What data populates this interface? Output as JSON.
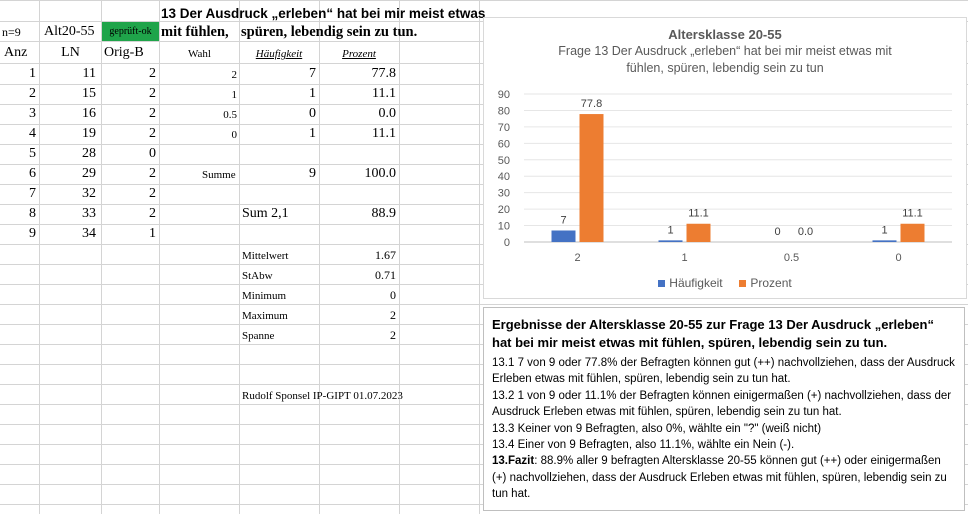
{
  "sheet": {
    "title": "13 Der Ausdruck „erleben“ hat bei mir meist etwas",
    "title_cont_1": "mit fühlen,",
    "title_cont_2": "spüren, lebendig sein zu tun.",
    "n_label": "n=9",
    "group_label": "Alt20-55",
    "checked_label": "geprüft-ok",
    "col_anz": "Anz",
    "col_ln": "LN",
    "col_orig": "Orig-B",
    "col_wahl": "Wahl",
    "col_haeuf": "Häufigkeit",
    "col_proz": "Prozent",
    "rows": [
      {
        "anz": "1",
        "ln": "11",
        "orig": "2"
      },
      {
        "anz": "2",
        "ln": "15",
        "orig": "2"
      },
      {
        "anz": "3",
        "ln": "16",
        "orig": "2"
      },
      {
        "anz": "4",
        "ln": "19",
        "orig": "2"
      },
      {
        "anz": "5",
        "ln": "28",
        "orig": "0"
      },
      {
        "anz": "6",
        "ln": "29",
        "orig": "2"
      },
      {
        "anz": "7",
        "ln": "32",
        "orig": "2"
      },
      {
        "anz": "8",
        "ln": "33",
        "orig": "2"
      },
      {
        "anz": "9",
        "ln": "34",
        "orig": "1"
      }
    ],
    "freq": [
      {
        "wahl": "2",
        "haeuf": "7",
        "proz": "77.8"
      },
      {
        "wahl": "1",
        "haeuf": "1",
        "proz": "11.1"
      },
      {
        "wahl": "0.5",
        "haeuf": "0",
        "proz": "0.0"
      },
      {
        "wahl": "0",
        "haeuf": "1",
        "proz": "11.1"
      }
    ],
    "summe_label": "Summe",
    "summe_haeuf": "9",
    "summe_proz": "100.0",
    "sum21_label": "Sum 2,1",
    "sum21_value": "88.9",
    "stats": [
      {
        "label": "Mittelwert",
        "value": "1.67"
      },
      {
        "label": "StAbw",
        "value": "0.71"
      },
      {
        "label": "Minimum",
        "value": "0"
      },
      {
        "label": "Maximum",
        "value": "2"
      },
      {
        "label": "Spanne",
        "value": "2"
      }
    ],
    "author": "Rudolf Sponsel IP-GIPT 01.07.2023"
  },
  "chart_data": {
    "type": "bar",
    "title": "Altersklasse 20-55",
    "subtitle_line1": "Frage 13 Der Ausdruck „erleben“ hat bei mir meist etwas mit",
    "subtitle_line2": "fühlen, spüren, lebendig sein zu tun",
    "categories": [
      "2",
      "1",
      "0.5",
      "0"
    ],
    "series": [
      {
        "name": "Häufigkeit",
        "values": [
          7,
          1,
          0,
          1
        ],
        "labels": [
          "7",
          "1",
          "0",
          "1"
        ],
        "color": "#4472c4"
      },
      {
        "name": "Prozent",
        "values": [
          77.8,
          11.1,
          0.0,
          11.1
        ],
        "labels": [
          "77.8",
          "11.1",
          "0.0",
          "11.1"
        ],
        "color": "#ed7d31"
      }
    ],
    "ylim": [
      0,
      90
    ],
    "yticks": [
      "0",
      "10",
      "20",
      "30",
      "40",
      "50",
      "60",
      "70",
      "80",
      "90"
    ],
    "grid": true,
    "legend": "bottom"
  },
  "summary": {
    "heading": "Ergebnisse der Altersklasse 20-55 zur Frage 13 Der Ausdruck „erleben“ hat bei mir meist etwas mit fühlen, spüren, lebendig sein zu tun.",
    "p1": "13.1   7 von 9 oder 77.8% der Befragten können gut (++) nachvollziehen, dass der Ausdruck Erleben etwas mit fühlen, spüren, lebendig sein zu tun hat.",
    "p2": "13.2   1 von 9 oder 11.1% der Befragten können einigermaßen (+) nachvollziehen, dass der Ausdruck Erleben etwas mit fühlen, spüren, lebendig sein zu tun hat.",
    "p3": "13.3  Keiner von 9 Befragten, also 0%, wählte ein \"?\" (weiß nicht)",
    "p4": "13.4  Einer von 9 Befragten, also 11.1%, wählte ein Nein (-).",
    "fazit_label": "13.Fazit",
    "fazit_text": ": 88.9% aller 9 befragten Altersklasse 20-55 können gut (++) oder einigermaßen (+)  nachvollziehen, dass der Ausdruck Erleben etwas mit fühlen, spüren, lebendig sein zu tun hat."
  }
}
